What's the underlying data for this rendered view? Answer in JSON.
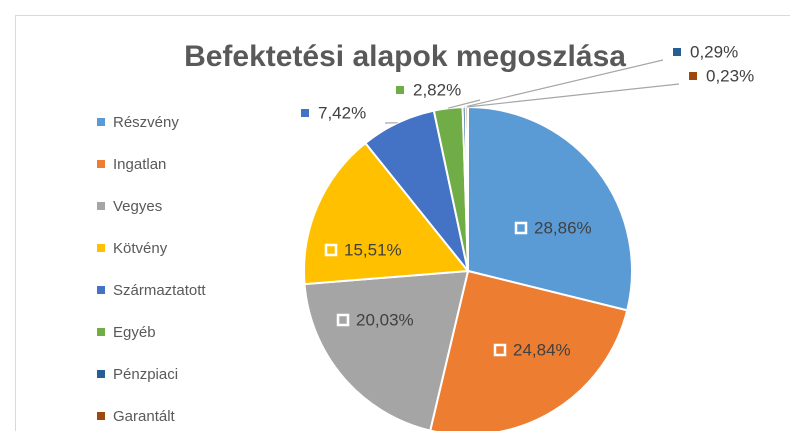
{
  "chart_data": {
    "type": "pie",
    "title": "Befektetési alapok megoszlása",
    "categories": [
      "Részvény",
      "Ingatlan",
      "Vegyes",
      "Kötvény",
      "Származtatott",
      "Egyéb",
      "Pénzpiaci",
      "Garantált"
    ],
    "values": [
      28.86,
      24.84,
      20.03,
      15.51,
      7.42,
      2.82,
      0.29,
      0.23
    ],
    "value_labels": [
      "28,86%",
      "24,84%",
      "20,03%",
      "15,51%",
      "7,42%",
      "2,82%",
      "0,29%",
      "0,23%"
    ],
    "colors": [
      "#5b9bd5",
      "#ed7d31",
      "#a5a5a5",
      "#ffc000",
      "#4472c4",
      "#70ad47",
      "#255e91",
      "#9e480e"
    ],
    "legend": "left"
  }
}
